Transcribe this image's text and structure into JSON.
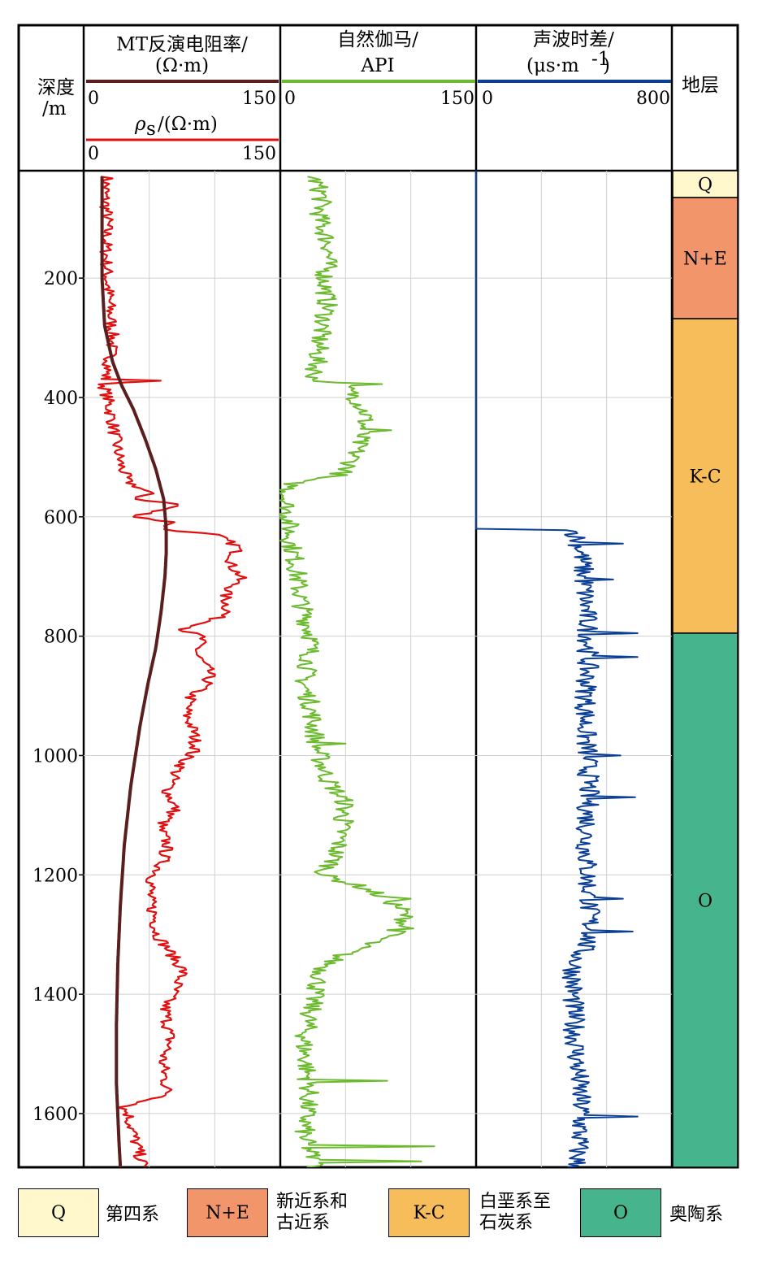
{
  "chart_data": {
    "type": "line",
    "depth_axis": {
      "label_line1": "深度",
      "label_line2": "/m",
      "ticks": [
        200,
        400,
        600,
        800,
        1000,
        1200,
        1400,
        1600
      ],
      "range": [
        20,
        1690
      ]
    },
    "tracks": [
      {
        "name": "MT反演电阻率/",
        "unit": "(Ω·m)",
        "xlim": [
          0,
          150
        ],
        "min_label": "0",
        "max_label": "150",
        "color": "#5a1e1e",
        "series_depth": [
          30,
          100,
          200,
          280,
          340,
          380,
          420,
          470,
          520,
          570,
          620,
          660,
          700,
          760,
          820,
          880,
          950,
          1050,
          1150,
          1250,
          1350,
          1450,
          1550,
          1650,
          1690
        ],
        "series_value": [
          14,
          14,
          14,
          16,
          22,
          29,
          38,
          47,
          55,
          61,
          63,
          63,
          62,
          59,
          55,
          49,
          43,
          36,
          31,
          28,
          26,
          25,
          25,
          27,
          28
        ]
      },
      {
        "name": "ρ",
        "subscript": "s",
        "unit": "/(Ω·m)",
        "xlim": [
          0,
          150
        ],
        "min_label": "0",
        "max_label": "150",
        "color": "#e01010",
        "series_depth": [
          30,
          60,
          100,
          150,
          200,
          250,
          300,
          340,
          370,
          372,
          376,
          400,
          440,
          480,
          510,
          540,
          560,
          570,
          580,
          590,
          600,
          610,
          620,
          630,
          650,
          680,
          700,
          730,
          760,
          780,
          790,
          800,
          830,
          860,
          880,
          900,
          930,
          960,
          990,
          1000,
          1030,
          1060,
          1090,
          1120,
          1150,
          1180,
          1210,
          1240,
          1270,
          1300,
          1330,
          1360,
          1390,
          1420,
          1450,
          1480,
          1510,
          1540,
          1570,
          1590,
          1600,
          1620,
          1650,
          1680,
          1690
        ],
        "series_value": [
          18,
          16,
          18,
          17,
          18,
          20,
          22,
          20,
          16,
          60,
          15,
          18,
          22,
          25,
          28,
          33,
          50,
          40,
          75,
          55,
          40,
          70,
          58,
          100,
          118,
          112,
          120,
          108,
          110,
          92,
          75,
          90,
          86,
          96,
          94,
          82,
          78,
          84,
          86,
          80,
          70,
          64,
          70,
          58,
          64,
          60,
          52,
          50,
          54,
          56,
          66,
          76,
          70,
          62,
          64,
          66,
          60,
          62,
          64,
          30,
          34,
          36,
          40,
          44,
          46
        ]
      },
      {
        "name": "自然伽马/",
        "unit": "API",
        "xlim": [
          0,
          150
        ],
        "min_label": "0",
        "max_label": "150",
        "color": "#6cba2e",
        "series_depth": [
          30,
          60,
          100,
          150,
          200,
          250,
          300,
          340,
          370,
          380,
          400,
          430,
          460,
          490,
          520,
          530,
          540,
          560,
          600,
          640,
          680,
          720,
          760,
          800,
          840,
          880,
          920,
          960,
          1000,
          1040,
          1080,
          1100,
          1140,
          1180,
          1200,
          1220,
          1240,
          1260,
          1280,
          1300,
          1320,
          1340,
          1360,
          1400,
          1440,
          1480,
          1520,
          1560,
          1600,
          1640,
          1680,
          1690
        ],
        "series_value": [
          25,
          32,
          30,
          38,
          34,
          36,
          30,
          28,
          26,
          48,
          58,
          66,
          62,
          58,
          52,
          44,
          12,
          4,
          6,
          8,
          12,
          14,
          18,
          24,
          22,
          18,
          24,
          26,
          30,
          36,
          50,
          48,
          46,
          40,
          32,
          62,
          82,
          94,
          96,
          86,
          62,
          42,
          32,
          26,
          22,
          18,
          20,
          22,
          20,
          18,
          26,
          28
        ],
        "spikes": [
          [
            378,
            78
          ],
          [
            455,
            85
          ],
          [
            980,
            50
          ],
          [
            1110,
            56
          ],
          [
            1240,
            100
          ],
          [
            1290,
            102
          ],
          [
            1545,
            82
          ],
          [
            1655,
            118
          ],
          [
            1680,
            108
          ]
        ]
      },
      {
        "name": "声波时差/",
        "unit": "(μs·m",
        "unit_sup": "-1",
        "unit_tail": ")",
        "xlim": [
          0,
          800
        ],
        "min_label": "0",
        "max_label": "800",
        "color": "#0b3f96",
        "series_depth": [
          20,
          620,
          621,
          660,
          700,
          760,
          800,
          850,
          900,
          950,
          1000,
          1050,
          1100,
          1150,
          1200,
          1250,
          1300,
          1330,
          1350,
          1400,
          1450,
          1500,
          1550,
          1600,
          1650,
          1690
        ],
        "series_value": [
          0,
          0,
          400,
          430,
          440,
          450,
          460,
          455,
          450,
          445,
          455,
          460,
          455,
          450,
          455,
          460,
          470,
          430,
          400,
          395,
          400,
          410,
          420,
          430,
          420,
          410
        ],
        "spikes": [
          [
            645,
            600
          ],
          [
            705,
            560
          ],
          [
            795,
            660
          ],
          [
            835,
            660
          ],
          [
            1000,
            590
          ],
          [
            1070,
            650
          ],
          [
            1240,
            600
          ],
          [
            1295,
            640
          ],
          [
            1605,
            660
          ]
        ]
      }
    ],
    "strata": {
      "label": "地层",
      "layers": [
        {
          "name": "Q",
          "top": 20,
          "bottom": 65,
          "color": "#fef8cc"
        },
        {
          "name": "N+E",
          "top": 65,
          "bottom": 268,
          "color": "#f2956a"
        },
        {
          "name": "K-C",
          "top": 268,
          "bottom": 795,
          "color": "#f7bd5a"
        },
        {
          "name": "O",
          "top": 795,
          "bottom": 1690,
          "color": "#46b58e"
        }
      ]
    },
    "legend": [
      {
        "code": "Q",
        "label": "第四系",
        "color": "#fef8cc"
      },
      {
        "code": "N+E",
        "label": "新近系和\n古近系",
        "color": "#f2956a"
      },
      {
        "code": "K-C",
        "label": "白垩系至\n石炭系",
        "color": "#f7bd5a"
      },
      {
        "code": "O",
        "label": "奥陶系",
        "color": "#46b58e"
      }
    ],
    "grid": true
  }
}
